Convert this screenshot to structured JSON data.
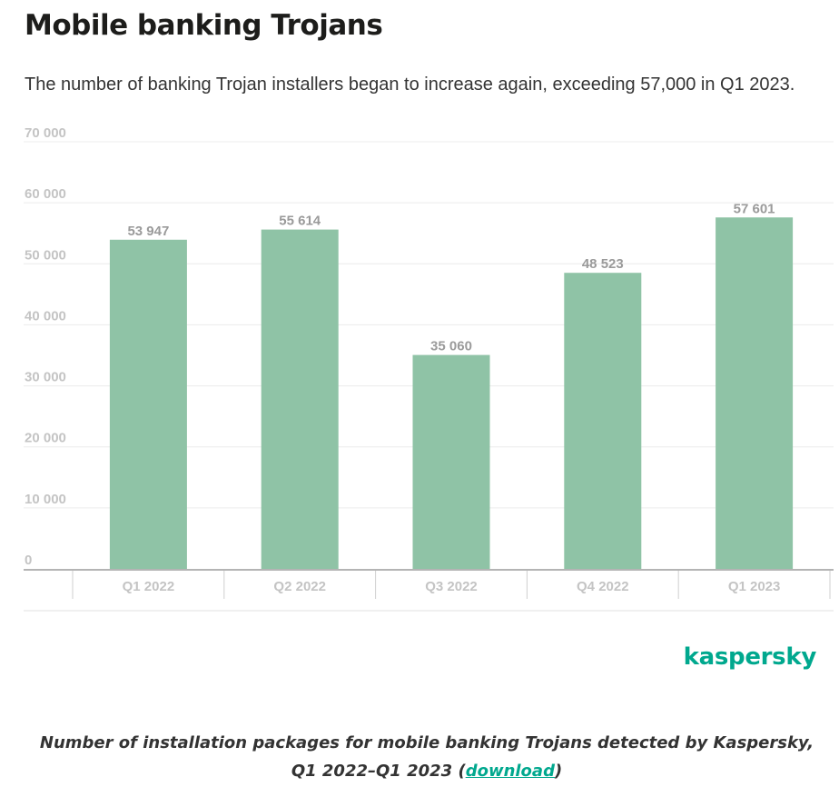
{
  "header": {
    "title": "Mobile banking Trojans",
    "subtitle": "The number of banking Trojan installers began to increase again, exceeding 57,000 in Q1 2023."
  },
  "chart_data": {
    "type": "bar",
    "categories": [
      "Q1 2022",
      "Q2 2022",
      "Q3 2022",
      "Q4 2022",
      "Q1 2023"
    ],
    "values": [
      53947,
      55614,
      35060,
      48523,
      57601
    ],
    "value_labels": [
      "53 947",
      "55 614",
      "35 060",
      "48 523",
      "57 601"
    ],
    "ylim": [
      0,
      70000
    ],
    "yticks": [
      0,
      10000,
      20000,
      30000,
      40000,
      50000,
      60000,
      70000
    ],
    "ytick_labels": [
      "0",
      "10 000",
      "20 000",
      "30 000",
      "40 000",
      "50 000",
      "60 000",
      "70 000"
    ],
    "grid": true,
    "colors": {
      "bar": "#8fc3a6",
      "value_label": "#9a9a9a",
      "tick_label": "#c4c4c4",
      "grid": "#ececec",
      "axis": "#b4b4b4"
    }
  },
  "brand": {
    "logo_text": "kaspersky",
    "color": "#00a88e"
  },
  "caption": {
    "text_line1": "Number of installation packages for mobile banking Trojans detected by Kaspersky,",
    "text_line2_prefix": "Q1 2022–Q1 2023 (",
    "link": "download",
    "text_line2_suffix": ")"
  }
}
